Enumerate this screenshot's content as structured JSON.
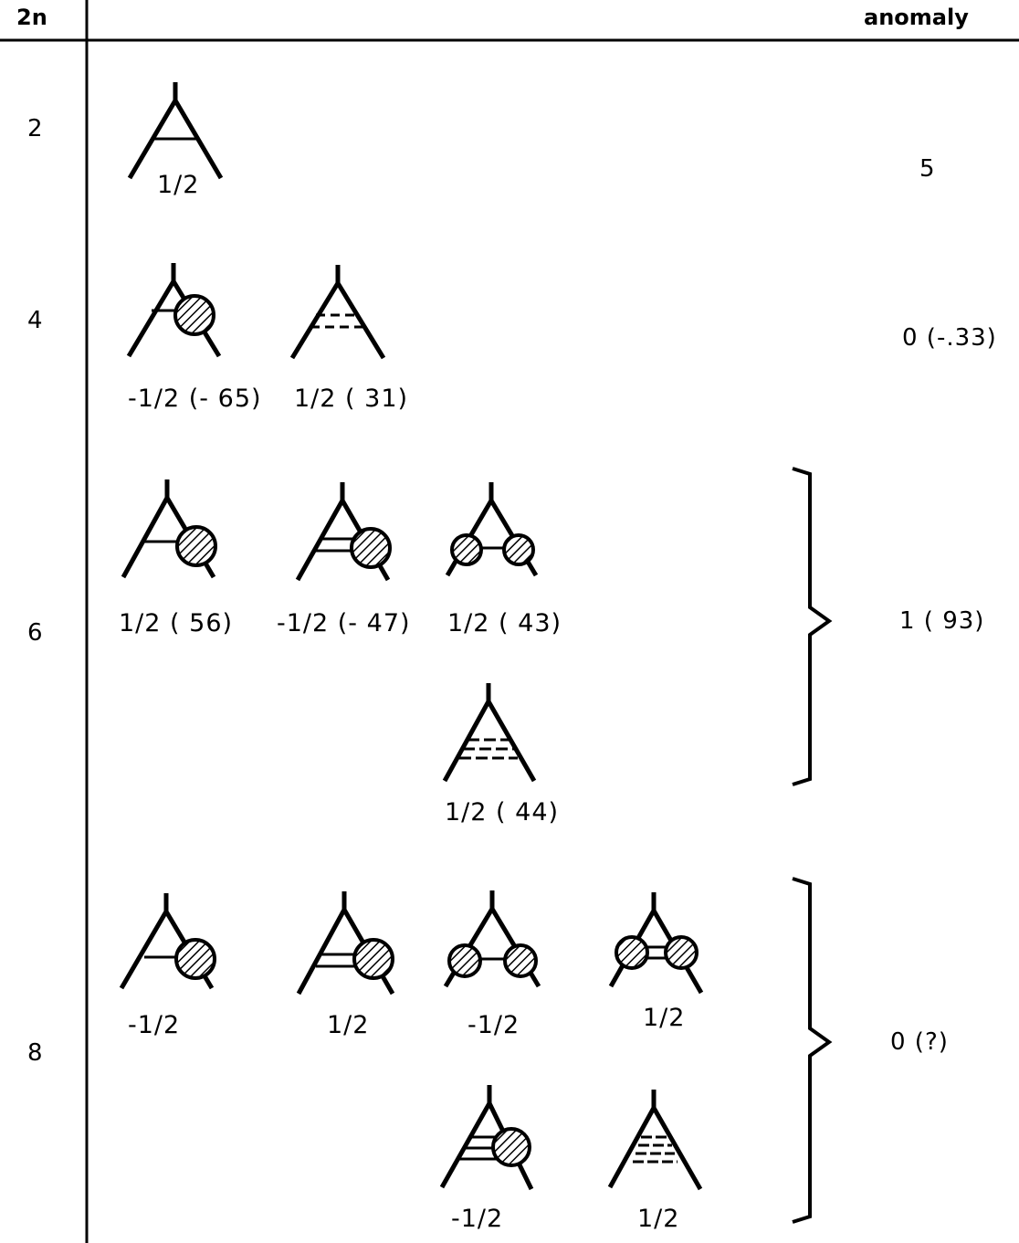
{
  "header": {
    "col_left": "2n",
    "col_right": "anomaly"
  },
  "rows": [
    {
      "n": "2",
      "anomaly": "5"
    },
    {
      "n": "4",
      "anomaly": "0 (-.33)"
    },
    {
      "n": "6",
      "anomaly": "1 ( 93)"
    },
    {
      "n": "8",
      "anomaly": "0 (?)"
    }
  ],
  "diagrams": [
    {
      "label": "1/2",
      "blobs": 0,
      "lines": 1
    },
    {
      "label": "-1/2 (- 65)",
      "blobs": 1,
      "lines": 1
    },
    {
      "label": "1/2 ( 31)",
      "blobs": 0,
      "lines": 2
    },
    {
      "label": "1/2 ( 56)",
      "blobs": 1,
      "lines": 1
    },
    {
      "label": "-1/2 (- 47)",
      "blobs": 1,
      "lines": 2
    },
    {
      "label": "1/2 ( 43)",
      "blobs": 2,
      "lines": 1
    },
    {
      "label": "1/2 ( 44)",
      "blobs": 0,
      "lines": 3
    },
    {
      "label": "-1/2",
      "blobs": 1,
      "lines": 1
    },
    {
      "label": "1/2",
      "blobs": 1,
      "lines": 2
    },
    {
      "label": "-1/2",
      "blobs": 2,
      "lines": 1
    },
    {
      "label": "1/2",
      "blobs": 2,
      "lines": 2
    },
    {
      "label": "-1/2",
      "blobs": 1,
      "lines": 3
    },
    {
      "label": "1/2",
      "blobs": 0,
      "lines": 4
    }
  ]
}
